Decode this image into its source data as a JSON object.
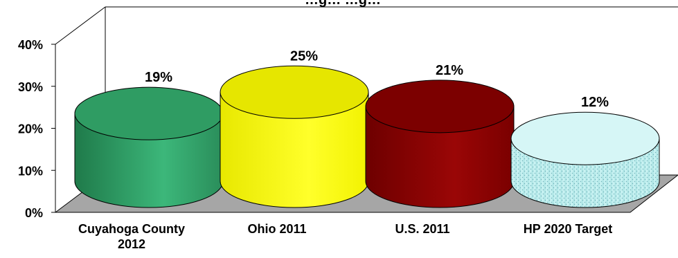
{
  "chart_data": {
    "type": "bar",
    "title": "…g… …g…",
    "categories": [
      "Cuyahoga County\n2012",
      "Ohio 2011",
      "U.S. 2011",
      "HP 2020 Target"
    ],
    "values": [
      19,
      25,
      21,
      12
    ],
    "data_labels": [
      "19%",
      "25%",
      "21%",
      "12%"
    ],
    "ylim": [
      0,
      40
    ],
    "ytick_labels": [
      "0%",
      "10%",
      "20%",
      "30%",
      "40%"
    ],
    "yticks": [
      0,
      10,
      20,
      30,
      40
    ],
    "grid": false,
    "legend": "none",
    "style": "3d-cylinder",
    "colors": {
      "Cuyahoga County 2012": "#2e9a62",
      "Ohio 2011": "#ffff00",
      "U.S. 2011": "#8b0000",
      "HP 2020 Target": "#bfeeee"
    }
  }
}
